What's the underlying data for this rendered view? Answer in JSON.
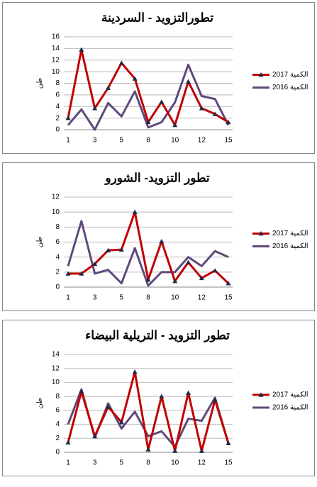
{
  "chart_data": [
    {
      "type": "line",
      "title": "تطورالتزويد - السردينة",
      "y_label": "طن",
      "categories": [
        "1",
        null,
        "3",
        null,
        "5",
        null,
        "8",
        null,
        "10",
        null,
        "12",
        null,
        "15"
      ],
      "ylim": [
        0,
        16
      ],
      "yticks": [
        0,
        2,
        4,
        6,
        8,
        10,
        12,
        14,
        16
      ],
      "grid": true,
      "legend": "right",
      "series": [
        {
          "name": "الكمية 2017",
          "color": "#c00000",
          "marker": "triangle",
          "values": [
            2,
            13.8,
            3.7,
            7.2,
            11.5,
            8.8,
            1.3,
            4.8,
            0.8,
            8.3,
            3.7,
            2.7,
            1.3
          ]
        },
        {
          "name": "الكمية 2016",
          "color": "#604a7b",
          "values": [
            0.8,
            3.5,
            0,
            4.6,
            2.3,
            6.6,
            0.4,
            1.3,
            4.7,
            11.2,
            5.8,
            5.3,
            0.8
          ]
        }
      ]
    },
    {
      "type": "line",
      "title": "تطور التزويد- الشورو",
      "y_label": "طن",
      "categories": [
        "1",
        null,
        "3",
        null,
        "5",
        null,
        "8",
        null,
        "10",
        null,
        "12",
        null,
        "15"
      ],
      "ylim": [
        0,
        12
      ],
      "yticks": [
        0,
        2,
        4,
        6,
        8,
        10,
        12
      ],
      "grid": true,
      "legend": "right",
      "series": [
        {
          "name": "الكمية 2017",
          "color": "#c00000",
          "marker": "triangle",
          "values": [
            1.8,
            1.8,
            3.1,
            4.9,
            5,
            10,
            1,
            6.1,
            0.8,
            3.3,
            1.2,
            2.2,
            0.5
          ]
        },
        {
          "name": "الكمية 2016",
          "color": "#604a7b",
          "values": [
            2.8,
            8.8,
            1.8,
            2.3,
            0.5,
            5.2,
            0.2,
            2,
            2,
            4,
            2.8,
            4.8,
            4
          ]
        }
      ]
    },
    {
      "type": "line",
      "title": "تطور التزويد - التريلية البيضاء",
      "y_label": "طن",
      "categories": [
        "1",
        null,
        "3",
        null,
        "5",
        null,
        "8",
        null,
        "10",
        null,
        "12",
        null,
        "15"
      ],
      "ylim": [
        0,
        14
      ],
      "yticks": [
        0,
        2,
        4,
        6,
        8,
        10,
        12,
        14
      ],
      "grid": true,
      "legend": "right",
      "series": [
        {
          "name": "الكمية 2017",
          "color": "#c00000",
          "marker": "triangle",
          "values": [
            1.4,
            8.7,
            2.3,
            6.5,
            4.3,
            11.5,
            0.4,
            8,
            0.2,
            8.5,
            0.2,
            7.5,
            1.3
          ]
        },
        {
          "name": "الكمية 2016",
          "color": "#604a7b",
          "values": [
            4,
            9,
            2.1,
            7,
            3.4,
            5.8,
            2.3,
            3,
            0.8,
            4.8,
            4.5,
            7.8,
            1.3
          ]
        }
      ]
    }
  ]
}
